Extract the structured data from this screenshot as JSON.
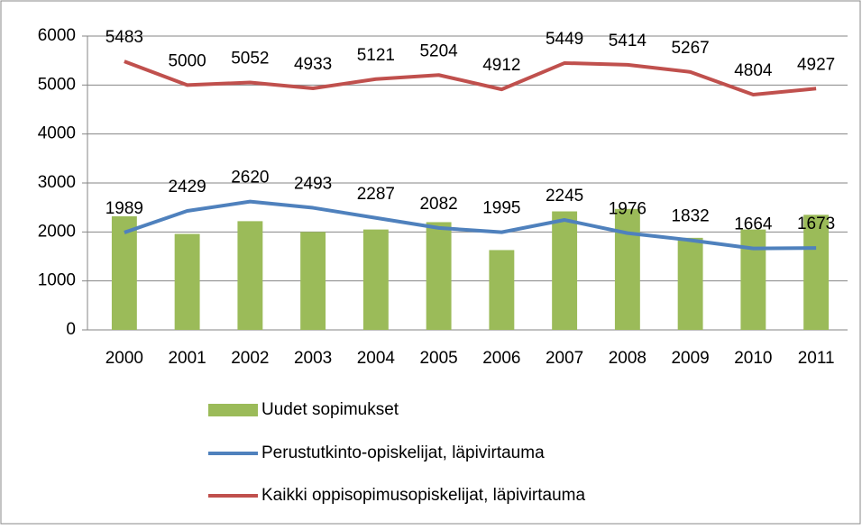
{
  "chart_data": {
    "type": "combo",
    "categories": [
      "2000",
      "2001",
      "2002",
      "2003",
      "2004",
      "2005",
      "2006",
      "2007",
      "2008",
      "2009",
      "2010",
      "2011"
    ],
    "series": [
      {
        "name": "Uudet sopimukset",
        "type": "bar",
        "color": "#9bbb59",
        "values": [
          2320,
          1960,
          2220,
          2000,
          2050,
          2200,
          1630,
          2420,
          2470,
          1880,
          2050,
          2350
        ]
      },
      {
        "name": "Perustutkinto-opiskelijat, läpivirtauma",
        "type": "line",
        "color": "#4f81bd",
        "values": [
          1989,
          2429,
          2620,
          2493,
          2287,
          2082,
          1995,
          2245,
          1976,
          1832,
          1664,
          1673
        ]
      },
      {
        "name": "Kaikki oppisopimusopiskelijat, läpivirtauma",
        "type": "line",
        "color": "#c0504d",
        "values": [
          5483,
          5000,
          5052,
          4933,
          5121,
          5204,
          4912,
          5449,
          5414,
          5267,
          4804,
          4927
        ]
      }
    ],
    "ylim": [
      0,
      6000
    ],
    "yticks": [
      0,
      1000,
      2000,
      3000,
      4000,
      5000,
      6000
    ],
    "grid": true,
    "data_labels": [
      false,
      true,
      true
    ],
    "legend": "bottom"
  }
}
